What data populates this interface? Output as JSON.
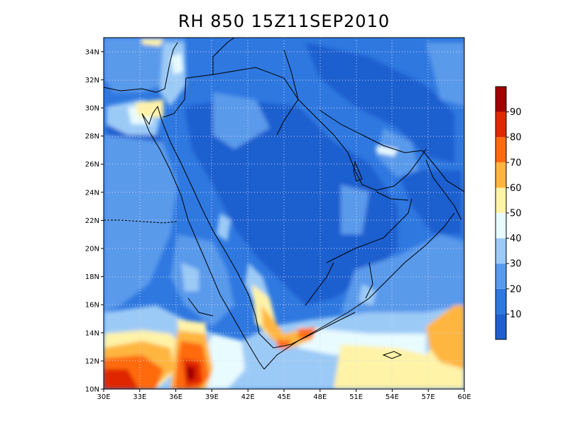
{
  "title": "RH 850 15Z11SEP2010",
  "map": {
    "lat_labels": [
      "34N",
      "32N",
      "30N",
      "28N",
      "26N",
      "24N",
      "22N",
      "20N",
      "18N",
      "16N",
      "14N",
      "12N",
      "10N"
    ],
    "lat_values": [
      34,
      32,
      30,
      28,
      26,
      24,
      22,
      20,
      18,
      16,
      14,
      12,
      10
    ],
    "lon_labels": [
      "30E",
      "33E",
      "36E",
      "39E",
      "42E",
      "45E",
      "48E",
      "51E",
      "54E",
      "57E",
      "60E"
    ],
    "lon_values": [
      30,
      33,
      36,
      39,
      42,
      45,
      48,
      51,
      54,
      57,
      60
    ],
    "lon_range": [
      30,
      60
    ],
    "lat_range": [
      10,
      35
    ],
    "grid": "dotted",
    "variable": "RH",
    "level": 850
  },
  "colorbar": {
    "labels": [
      "10",
      "20",
      "30",
      "40",
      "50",
      "60",
      "70",
      "80",
      "90"
    ],
    "bins": [
      {
        "color": "#1f5fcf"
      },
      {
        "color": "#2f78e0"
      },
      {
        "color": "#5a9aeb"
      },
      {
        "color": "#9ccaf6"
      },
      {
        "color": "#e8fbff"
      },
      {
        "color": "#fff3a8"
      },
      {
        "color": "#ffb640"
      },
      {
        "color": "#ff6a10"
      },
      {
        "color": "#e02800"
      },
      {
        "color": "#a00000"
      }
    ]
  }
}
